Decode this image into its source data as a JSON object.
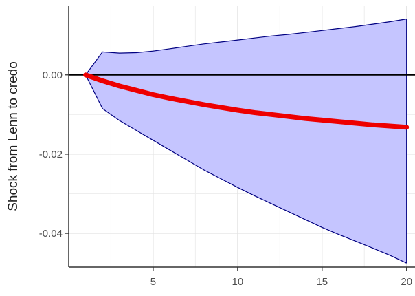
{
  "chart_data": {
    "type": "area",
    "title": "",
    "xlabel": "",
    "ylabel": "Shock from  Lenn  to credo",
    "xlim": [
      0,
      20.5
    ],
    "ylim": [
      -0.0485,
      0.0175
    ],
    "x_ticks": [
      5,
      10,
      15,
      20
    ],
    "x_tick_labels": [
      "5",
      "10",
      "15",
      "20"
    ],
    "y_ticks": [
      0.0,
      -0.02,
      -0.04
    ],
    "y_tick_labels": [
      "0.00",
      "-0.02",
      "-0.04"
    ],
    "grid": true,
    "legend": "none",
    "zero_line": 0,
    "series": [
      {
        "role": "response",
        "color": "#ee0000",
        "x": [
          1,
          2,
          3,
          4,
          5,
          6,
          7,
          8,
          9,
          10,
          11,
          12,
          13,
          14,
          15,
          16,
          17,
          18,
          19,
          20
        ],
        "y": [
          0.0,
          -0.0015,
          -0.0028,
          -0.0039,
          -0.005,
          -0.0059,
          -0.0067,
          -0.0075,
          -0.0082,
          -0.0089,
          -0.0095,
          -0.01,
          -0.0105,
          -0.011,
          -0.0114,
          -0.0118,
          -0.0122,
          -0.0126,
          -0.0129,
          -0.0132
        ]
      },
      {
        "role": "upper_band",
        "color": "#000080",
        "x": [
          1,
          2,
          3,
          4,
          5,
          6,
          7,
          8,
          9,
          10,
          11,
          12,
          13,
          14,
          15,
          16,
          17,
          18,
          19,
          20
        ],
        "y": [
          0.0,
          0.0058,
          0.0055,
          0.0056,
          0.006,
          0.0066,
          0.0072,
          0.0078,
          0.0083,
          0.0088,
          0.0093,
          0.0098,
          0.0102,
          0.0107,
          0.0112,
          0.0117,
          0.0122,
          0.0128,
          0.0134,
          0.0141
        ]
      },
      {
        "role": "lower_band",
        "color": "#000080",
        "x": [
          1,
          2,
          3,
          4,
          5,
          6,
          7,
          8,
          9,
          10,
          11,
          12,
          13,
          14,
          15,
          16,
          17,
          18,
          19,
          20
        ],
        "y": [
          0.0,
          -0.0085,
          -0.0115,
          -0.014,
          -0.0165,
          -0.019,
          -0.0215,
          -0.024,
          -0.0262,
          -0.0284,
          -0.0305,
          -0.0325,
          -0.0345,
          -0.0365,
          -0.0385,
          -0.0403,
          -0.042,
          -0.0437,
          -0.0455,
          -0.0475
        ]
      }
    ],
    "band_fill": "#c5c5ff",
    "grid_color": "#e2e2e2",
    "axis_color": "#333333"
  }
}
